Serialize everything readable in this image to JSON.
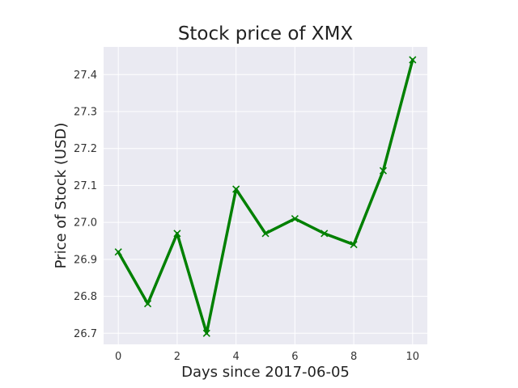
{
  "chart_data": {
    "type": "line",
    "title": "Stock price of XMX",
    "xlabel": "Days since 2017-06-05",
    "ylabel": "Price of Stock (USD)",
    "x": [
      0,
      1,
      2,
      3,
      4,
      5,
      6,
      7,
      8,
      9,
      10
    ],
    "xticks": [
      "0",
      "2",
      "4",
      "6",
      "8",
      "10"
    ],
    "yticks": [
      "26.7",
      "26.8",
      "26.9",
      "27.0",
      "27.1",
      "27.2",
      "27.3",
      "27.4"
    ],
    "xlim": [
      -0.5,
      10.5
    ],
    "ylim": [
      26.67,
      27.475
    ],
    "grid": true,
    "series": [
      {
        "values": [
          26.92,
          26.78,
          26.97,
          26.7,
          27.09,
          26.97,
          27.01,
          26.97,
          26.94,
          27.14,
          27.44
        ],
        "color": "#008000",
        "marker": "x"
      }
    ],
    "colors": {
      "plot_background": "#eaeaf2",
      "grid": "#ffffff",
      "line": "#008000"
    }
  }
}
